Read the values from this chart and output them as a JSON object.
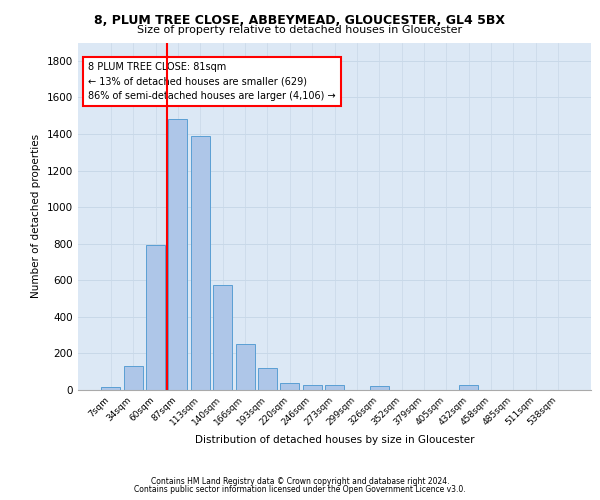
{
  "title1": "8, PLUM TREE CLOSE, ABBEYMEAD, GLOUCESTER, GL4 5BX",
  "title2": "Size of property relative to detached houses in Gloucester",
  "xlabel": "Distribution of detached houses by size in Gloucester",
  "ylabel": "Number of detached properties",
  "categories": [
    "7sqm",
    "34sqm",
    "60sqm",
    "87sqm",
    "113sqm",
    "140sqm",
    "166sqm",
    "193sqm",
    "220sqm",
    "246sqm",
    "273sqm",
    "299sqm",
    "326sqm",
    "352sqm",
    "379sqm",
    "405sqm",
    "432sqm",
    "458sqm",
    "485sqm",
    "511sqm",
    "538sqm"
  ],
  "values": [
    15,
    130,
    795,
    1480,
    1390,
    575,
    250,
    120,
    38,
    30,
    30,
    0,
    20,
    0,
    0,
    0,
    25,
    0,
    0,
    0,
    0
  ],
  "bar_color": "#aec6e8",
  "bar_edge_color": "#5a9fd4",
  "grid_color": "#c8d8e8",
  "bg_color": "#dce8f5",
  "vline_color": "red",
  "annotation_line1": "8 PLUM TREE CLOSE: 81sqm",
  "annotation_line2": "← 13% of detached houses are smaller (629)",
  "annotation_line3": "86% of semi-detached houses are larger (4,106) →",
  "footer1": "Contains HM Land Registry data © Crown copyright and database right 2024.",
  "footer2": "Contains public sector information licensed under the Open Government Licence v3.0.",
  "ylim": [
    0,
    1900
  ],
  "yticks": [
    0,
    200,
    400,
    600,
    800,
    1000,
    1200,
    1400,
    1600,
    1800
  ],
  "vline_index": 3
}
